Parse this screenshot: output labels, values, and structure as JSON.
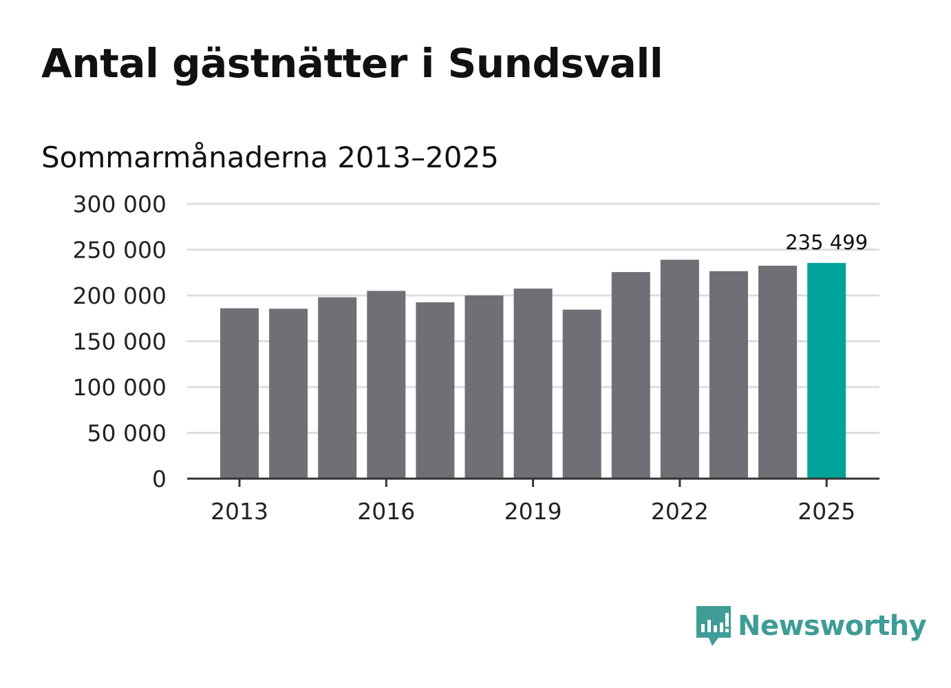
{
  "header": {
    "title": "Antal gästnätter i Sundsvall",
    "subtitle": "Sommarmånaderna 2013–2025"
  },
  "colors": {
    "bar": "#706f75",
    "highlight": "#00a39a",
    "grid": "#dddddd",
    "axis": "#333333",
    "brand": "#3f9c96"
  },
  "logo": {
    "text": "Newsworthy",
    "icon": "bar-chart-speech-bubble-icon"
  },
  "chart_data": {
    "type": "bar",
    "title": "Antal gästnätter i Sundsvall",
    "subtitle": "Sommarmånaderna 2013–2025",
    "categories": [
      "2013",
      "2014",
      "2015",
      "2016",
      "2017",
      "2018",
      "2019",
      "2020",
      "2021",
      "2022",
      "2023",
      "2024",
      "2025"
    ],
    "values": [
      186000,
      185500,
      198000,
      205000,
      192500,
      200000,
      207500,
      184500,
      225500,
      239000,
      226500,
      232500,
      235499
    ],
    "highlight_index": 12,
    "highlight_label": "235 499",
    "x_tick_labels": [
      "2013",
      "2016",
      "2019",
      "2022",
      "2025"
    ],
    "y_ticks": [
      0,
      50000,
      100000,
      150000,
      200000,
      250000,
      300000
    ],
    "y_tick_labels": [
      "0",
      "50 000",
      "100 000",
      "150 000",
      "200 000",
      "250 000",
      "300 000"
    ],
    "ylim": [
      0,
      300000
    ],
    "xlabel": "",
    "ylabel": "",
    "grid": true,
    "legend": "none"
  }
}
